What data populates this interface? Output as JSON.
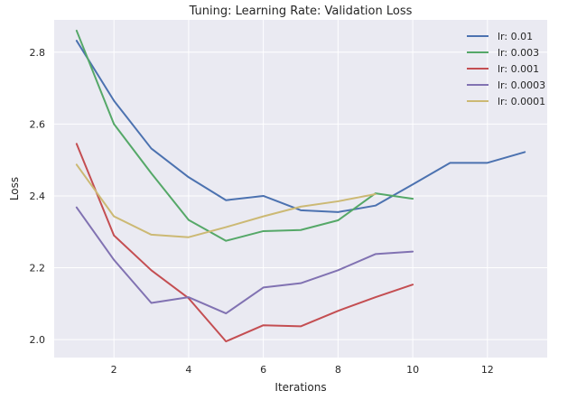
{
  "chart_data": {
    "type": "line",
    "title": "Tuning: Learning Rate: Validation Loss",
    "xlabel": "Iterations",
    "ylabel": "Loss",
    "xlim": [
      0.4,
      13.6
    ],
    "ylim": [
      1.95,
      2.89
    ],
    "xticks": [
      2,
      4,
      6,
      8,
      10,
      12
    ],
    "yticks": [
      2.0,
      2.2,
      2.4,
      2.6,
      2.8
    ],
    "grid": true,
    "legend_position": "top-right",
    "series": [
      {
        "name": "lr: 0.01",
        "color": "#4c72b0",
        "x": [
          1,
          2,
          3,
          4,
          5,
          6,
          7,
          8,
          9,
          10,
          11,
          12,
          13
        ],
        "y": [
          2.832,
          2.665,
          2.532,
          2.452,
          2.388,
          2.4,
          2.36,
          2.355,
          2.373,
          2.432,
          2.492,
          2.492,
          2.522
        ]
      },
      {
        "name": "lr: 0.003",
        "color": "#55a868",
        "x": [
          1,
          2,
          3,
          4,
          5,
          6,
          7,
          8,
          9,
          10
        ],
        "y": [
          2.86,
          2.6,
          2.463,
          2.333,
          2.275,
          2.302,
          2.305,
          2.332,
          2.407,
          2.392
        ]
      },
      {
        "name": "lr: 0.001",
        "color": "#c44e52",
        "x": [
          1,
          2,
          3,
          4,
          5,
          6,
          7,
          8,
          9,
          10
        ],
        "y": [
          2.545,
          2.29,
          2.193,
          2.115,
          1.995,
          2.04,
          2.037,
          2.08,
          2.118,
          2.153
        ]
      },
      {
        "name": "lr: 0.0003",
        "color": "#8172b2",
        "x": [
          1,
          2,
          3,
          4,
          5,
          6,
          7,
          8,
          9,
          10
        ],
        "y": [
          2.368,
          2.222,
          2.102,
          2.118,
          2.073,
          2.145,
          2.157,
          2.193,
          2.238,
          2.245
        ]
      },
      {
        "name": "lr: 0.0001",
        "color": "#ccb974",
        "x": [
          1,
          2,
          3,
          4,
          5,
          6,
          7,
          8,
          9
        ],
        "y": [
          2.487,
          2.343,
          2.292,
          2.285,
          2.313,
          2.343,
          2.37,
          2.385,
          2.405
        ]
      }
    ]
  },
  "style": {
    "plot_background": "#eaeaf2",
    "grid_color": "#ffffff",
    "text_color": "#262626"
  }
}
